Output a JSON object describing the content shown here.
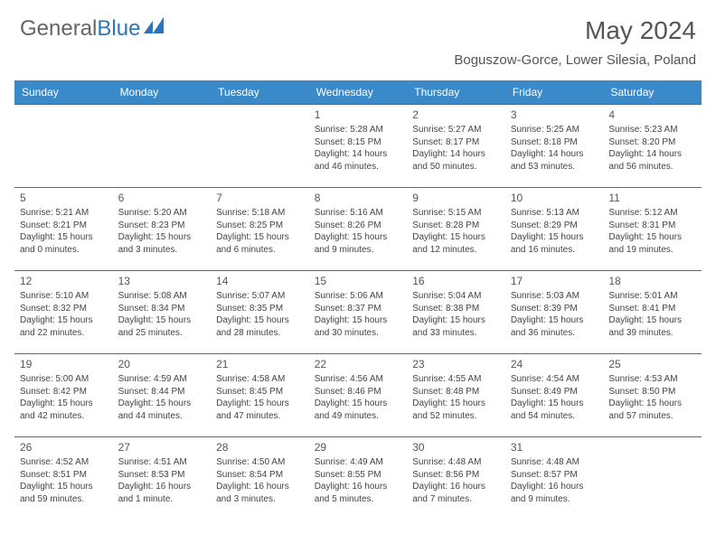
{
  "brand": {
    "part1": "General",
    "part2": "Blue"
  },
  "title": "May 2024",
  "location": "Boguszow-Gorce, Lower Silesia, Poland",
  "colors": {
    "header_bg": "#3a8ac9",
    "header_text": "#ffffff",
    "border": "#2e75b6",
    "text": "#444444",
    "brand_gray": "#666666",
    "brand_blue": "#2e75b6",
    "background": "#ffffff"
  },
  "daynames": [
    "Sunday",
    "Monday",
    "Tuesday",
    "Wednesday",
    "Thursday",
    "Friday",
    "Saturday"
  ],
  "weeks": [
    [
      null,
      null,
      null,
      {
        "n": "1",
        "sr": "5:28 AM",
        "ss": "8:15 PM",
        "dl": "14 hours and 46 minutes."
      },
      {
        "n": "2",
        "sr": "5:27 AM",
        "ss": "8:17 PM",
        "dl": "14 hours and 50 minutes."
      },
      {
        "n": "3",
        "sr": "5:25 AM",
        "ss": "8:18 PM",
        "dl": "14 hours and 53 minutes."
      },
      {
        "n": "4",
        "sr": "5:23 AM",
        "ss": "8:20 PM",
        "dl": "14 hours and 56 minutes."
      }
    ],
    [
      {
        "n": "5",
        "sr": "5:21 AM",
        "ss": "8:21 PM",
        "dl": "15 hours and 0 minutes."
      },
      {
        "n": "6",
        "sr": "5:20 AM",
        "ss": "8:23 PM",
        "dl": "15 hours and 3 minutes."
      },
      {
        "n": "7",
        "sr": "5:18 AM",
        "ss": "8:25 PM",
        "dl": "15 hours and 6 minutes."
      },
      {
        "n": "8",
        "sr": "5:16 AM",
        "ss": "8:26 PM",
        "dl": "15 hours and 9 minutes."
      },
      {
        "n": "9",
        "sr": "5:15 AM",
        "ss": "8:28 PM",
        "dl": "15 hours and 12 minutes."
      },
      {
        "n": "10",
        "sr": "5:13 AM",
        "ss": "8:29 PM",
        "dl": "15 hours and 16 minutes."
      },
      {
        "n": "11",
        "sr": "5:12 AM",
        "ss": "8:31 PM",
        "dl": "15 hours and 19 minutes."
      }
    ],
    [
      {
        "n": "12",
        "sr": "5:10 AM",
        "ss": "8:32 PM",
        "dl": "15 hours and 22 minutes."
      },
      {
        "n": "13",
        "sr": "5:08 AM",
        "ss": "8:34 PM",
        "dl": "15 hours and 25 minutes."
      },
      {
        "n": "14",
        "sr": "5:07 AM",
        "ss": "8:35 PM",
        "dl": "15 hours and 28 minutes."
      },
      {
        "n": "15",
        "sr": "5:06 AM",
        "ss": "8:37 PM",
        "dl": "15 hours and 30 minutes."
      },
      {
        "n": "16",
        "sr": "5:04 AM",
        "ss": "8:38 PM",
        "dl": "15 hours and 33 minutes."
      },
      {
        "n": "17",
        "sr": "5:03 AM",
        "ss": "8:39 PM",
        "dl": "15 hours and 36 minutes."
      },
      {
        "n": "18",
        "sr": "5:01 AM",
        "ss": "8:41 PM",
        "dl": "15 hours and 39 minutes."
      }
    ],
    [
      {
        "n": "19",
        "sr": "5:00 AM",
        "ss": "8:42 PM",
        "dl": "15 hours and 42 minutes."
      },
      {
        "n": "20",
        "sr": "4:59 AM",
        "ss": "8:44 PM",
        "dl": "15 hours and 44 minutes."
      },
      {
        "n": "21",
        "sr": "4:58 AM",
        "ss": "8:45 PM",
        "dl": "15 hours and 47 minutes."
      },
      {
        "n": "22",
        "sr": "4:56 AM",
        "ss": "8:46 PM",
        "dl": "15 hours and 49 minutes."
      },
      {
        "n": "23",
        "sr": "4:55 AM",
        "ss": "8:48 PM",
        "dl": "15 hours and 52 minutes."
      },
      {
        "n": "24",
        "sr": "4:54 AM",
        "ss": "8:49 PM",
        "dl": "15 hours and 54 minutes."
      },
      {
        "n": "25",
        "sr": "4:53 AM",
        "ss": "8:50 PM",
        "dl": "15 hours and 57 minutes."
      }
    ],
    [
      {
        "n": "26",
        "sr": "4:52 AM",
        "ss": "8:51 PM",
        "dl": "15 hours and 59 minutes."
      },
      {
        "n": "27",
        "sr": "4:51 AM",
        "ss": "8:53 PM",
        "dl": "16 hours and 1 minute."
      },
      {
        "n": "28",
        "sr": "4:50 AM",
        "ss": "8:54 PM",
        "dl": "16 hours and 3 minutes."
      },
      {
        "n": "29",
        "sr": "4:49 AM",
        "ss": "8:55 PM",
        "dl": "16 hours and 5 minutes."
      },
      {
        "n": "30",
        "sr": "4:48 AM",
        "ss": "8:56 PM",
        "dl": "16 hours and 7 minutes."
      },
      {
        "n": "31",
        "sr": "4:48 AM",
        "ss": "8:57 PM",
        "dl": "16 hours and 9 minutes."
      },
      null
    ]
  ],
  "labels": {
    "sunrise": "Sunrise: ",
    "sunset": "Sunset: ",
    "daylight": "Daylight: "
  }
}
